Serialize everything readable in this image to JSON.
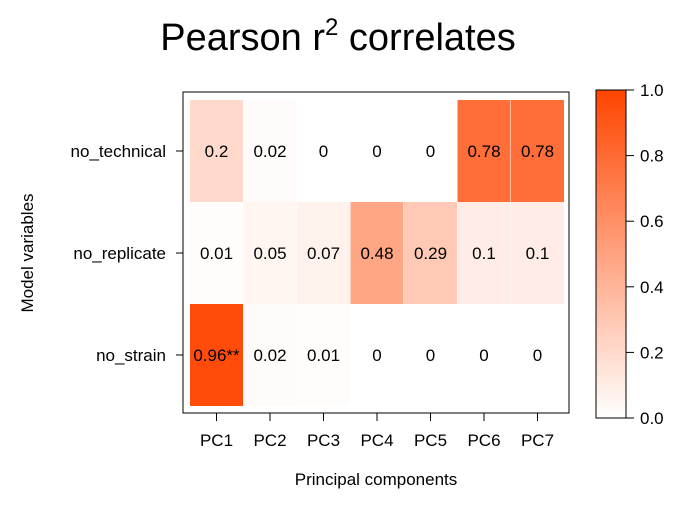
{
  "chart_data": {
    "type": "heatmap",
    "title": "Pearson r",
    "title_superscript": "2",
    "title_suffix": " correlates",
    "xlabel": "Principal components",
    "ylabel": "Model variables",
    "x_categories": [
      "PC1",
      "PC2",
      "PC3",
      "PC4",
      "PC5",
      "PC6",
      "PC7"
    ],
    "y_categories": [
      "no_technical",
      "no_replicate",
      "no_strain"
    ],
    "values": [
      [
        0.2,
        0.02,
        0,
        0,
        0,
        0.78,
        0.78
      ],
      [
        0.01,
        0.05,
        0.07,
        0.48,
        0.29,
        0.1,
        0.1
      ],
      [
        0.96,
        0.02,
        0.01,
        0,
        0,
        0,
        0
      ]
    ],
    "cell_labels": [
      [
        "0.2",
        "0.02",
        "0",
        "0",
        "0",
        "0.78",
        "0.78"
      ],
      [
        "0.01",
        "0.05",
        "0.07",
        "0.48",
        "0.29",
        "0.1",
        "0.1"
      ],
      [
        "0.96**",
        "0.02",
        "0.01",
        "0",
        "0",
        "0",
        "0"
      ]
    ],
    "colorbar": {
      "range": [
        0,
        1
      ],
      "ticks": [
        0.0,
        0.2,
        0.4,
        0.6,
        0.8,
        1.0
      ],
      "tick_labels": [
        "0.0",
        "0.2",
        "0.4",
        "0.6",
        "0.8",
        "1.0"
      ],
      "color_low": "#ffffff",
      "color_high": "#ff4500"
    }
  }
}
